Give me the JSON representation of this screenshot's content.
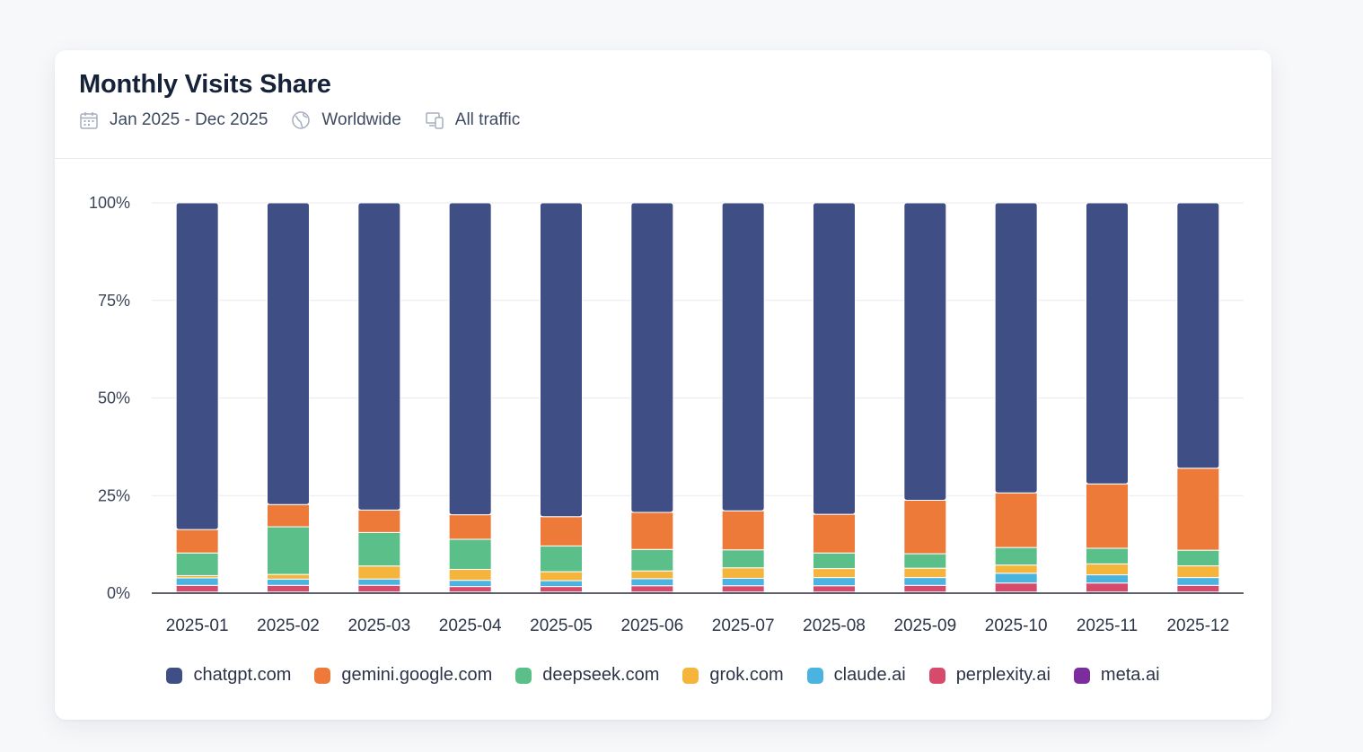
{
  "card": {
    "title": "Monthly Visits Share",
    "filters": {
      "date": {
        "icon": "calendar-icon",
        "label": "Jan 2025 - Dec 2025"
      },
      "region": {
        "icon": "globe-icon",
        "label": "Worldwide"
      },
      "traffic": {
        "icon": "devices-icon",
        "label": "All traffic"
      }
    }
  },
  "chart_data": {
    "type": "bar",
    "stacked": true,
    "title": "Monthly Visits Share",
    "xlabel": "",
    "ylabel": "",
    "ylim": [
      0,
      100
    ],
    "yticks": [
      "0%",
      "25%",
      "50%",
      "75%",
      "100%"
    ],
    "ytick_values": [
      0,
      25,
      50,
      75,
      100
    ],
    "grid": true,
    "legend_position": "bottom",
    "categories": [
      "2025-01",
      "2025-02",
      "2025-03",
      "2025-04",
      "2025-05",
      "2025-06",
      "2025-07",
      "2025-08",
      "2025-09",
      "2025-10",
      "2025-11",
      "2025-12"
    ],
    "series": [
      {
        "name": "meta.ai",
        "color": "#7b2d9e",
        "values": [
          0.3,
          0.3,
          0.3,
          0.3,
          0.3,
          0.3,
          0.3,
          0.3,
          0.3,
          0.3,
          0.3,
          0.3
        ]
      },
      {
        "name": "perplexity.ai",
        "color": "#d64a6b",
        "values": [
          1.7,
          1.7,
          1.7,
          1.4,
          1.4,
          1.6,
          1.6,
          1.6,
          1.7,
          2.3,
          2.3,
          1.7
        ]
      },
      {
        "name": "claude.ai",
        "color": "#4ab3e0",
        "values": [
          1.9,
          1.6,
          1.6,
          1.6,
          1.5,
          1.8,
          1.9,
          2.1,
          2.0,
          2.5,
          2.1,
          2.0
        ]
      },
      {
        "name": "grok.com",
        "color": "#f5b43c",
        "values": [
          0.6,
          1.2,
          3.3,
          2.8,
          2.3,
          2.0,
          2.7,
          2.3,
          2.4,
          2.1,
          2.8,
          3.0
        ]
      },
      {
        "name": "deepseek.com",
        "color": "#5bbf8a",
        "values": [
          5.8,
          12.2,
          8.5,
          7.7,
          6.6,
          5.5,
          4.6,
          4.0,
          3.7,
          4.5,
          4.0,
          4.0
        ]
      },
      {
        "name": "gemini.google.com",
        "color": "#ee7a3a",
        "values": [
          6.0,
          5.7,
          5.7,
          6.3,
          7.5,
          9.5,
          10.0,
          9.9,
          13.7,
          14.0,
          16.5,
          21.0
        ]
      },
      {
        "name": "chatgpt.com",
        "color": "#3f4f85",
        "values": [
          83.7,
          77.3,
          78.0,
          79.9,
          80.4,
          79.3,
          78.9,
          79.8,
          76.2,
          74.3,
          72.0,
          68.0
        ]
      }
    ]
  },
  "legend": [
    {
      "name": "chatgpt.com",
      "color": "#3f4f85"
    },
    {
      "name": "gemini.google.com",
      "color": "#ee7a3a"
    },
    {
      "name": "deepseek.com",
      "color": "#5bbf8a"
    },
    {
      "name": "grok.com",
      "color": "#f5b43c"
    },
    {
      "name": "claude.ai",
      "color": "#4ab3e0"
    },
    {
      "name": "perplexity.ai",
      "color": "#d64a6b"
    },
    {
      "name": "meta.ai",
      "color": "#7b2d9e"
    }
  ]
}
